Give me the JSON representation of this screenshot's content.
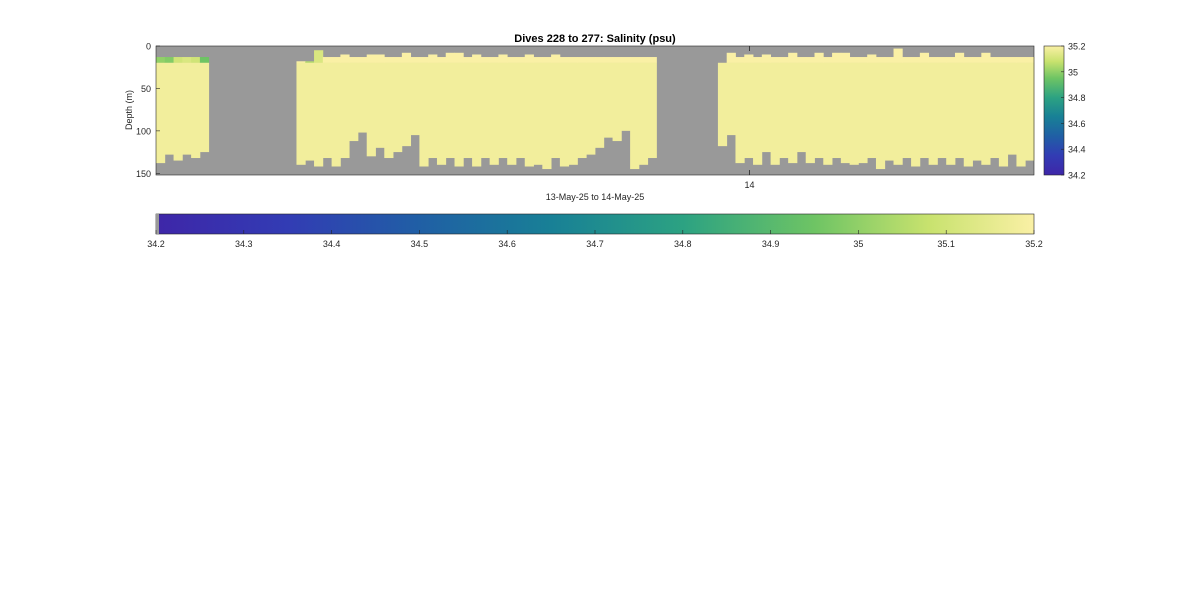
{
  "chart_data": {
    "type": "heatmap",
    "title": "Dives 228 to 277: Salinity (psu)",
    "xlabel": "13-May-25 to 14-May-25",
    "ylabel": "Depth (m)",
    "x_tick_labels": [
      "14"
    ],
    "y_ticks": [
      0,
      50,
      100,
      150
    ],
    "ylim": [
      0,
      152
    ],
    "y_reversed": true,
    "no_data_color": "#999999",
    "colormap": "parula-like (dark blue to yellow)",
    "color_scale": {
      "min": 34.2,
      "max": 35.2,
      "vertical_colorbar_ticks": [
        "34.2",
        "34.4",
        "34.6",
        "34.8",
        "35",
        "35.2"
      ],
      "horizontal_colorbar_ticks": [
        "34.2",
        "34.3",
        "34.4",
        "34.5",
        "34.6",
        "34.7",
        "34.8",
        "34.9",
        "35",
        "35.1",
        "35.2"
      ]
    },
    "profiles": {
      "bin_count": 100,
      "bottom_depth_m": 152,
      "valid_top_depth_m": [
        13,
        13,
        13,
        13,
        13,
        13,
        null,
        null,
        null,
        null,
        null,
        null,
        null,
        null,
        null,
        null,
        18,
        18,
        5,
        13,
        13,
        10,
        13,
        13,
        10,
        10,
        13,
        13,
        8,
        13,
        13,
        10,
        13,
        8,
        8,
        13,
        10,
        13,
        13,
        10,
        13,
        13,
        10,
        13,
        13,
        10,
        13,
        13,
        13,
        13,
        13,
        13,
        13,
        13,
        13,
        13,
        13,
        null,
        null,
        null,
        null,
        null,
        null,
        null,
        20,
        8,
        13,
        10,
        13,
        10,
        13,
        13,
        8,
        13,
        13,
        8,
        13,
        8,
        8,
        13,
        13,
        10,
        13,
        13,
        3,
        13,
        13,
        8,
        13,
        13,
        13,
        8,
        13,
        13,
        8,
        13,
        13,
        13,
        13,
        13
      ],
      "valid_bottom_depth_m": [
        138,
        128,
        135,
        128,
        132,
        125,
        null,
        null,
        null,
        null,
        null,
        null,
        null,
        null,
        null,
        null,
        140,
        135,
        142,
        132,
        142,
        132,
        112,
        102,
        130,
        120,
        132,
        125,
        118,
        105,
        142,
        132,
        140,
        132,
        142,
        132,
        142,
        132,
        140,
        132,
        140,
        132,
        142,
        140,
        145,
        132,
        142,
        140,
        132,
        128,
        120,
        108,
        112,
        100,
        145,
        140,
        132,
        null,
        null,
        null,
        null,
        null,
        null,
        null,
        118,
        105,
        138,
        132,
        140,
        125,
        140,
        132,
        138,
        125,
        138,
        132,
        140,
        132,
        138,
        140,
        138,
        132,
        145,
        135,
        140,
        132,
        142,
        132,
        140,
        132,
        140,
        132,
        142,
        135,
        140,
        132,
        142,
        128,
        142,
        135
      ],
      "near_surface_salinity": [
        35.0,
        34.98,
        35.1,
        35.12,
        35.1,
        34.95,
        null,
        null,
        null,
        null,
        null,
        null,
        null,
        null,
        null,
        null,
        35.2,
        35.05,
        35.12,
        35.2,
        35.2,
        35.2,
        35.2,
        35.2,
        35.2,
        35.2,
        35.2,
        35.2,
        35.2,
        35.2,
        35.2,
        35.2,
        35.2,
        35.2,
        35.2,
        35.2,
        35.2,
        35.2,
        35.2,
        35.2,
        35.2,
        35.2,
        35.2,
        35.2,
        35.2,
        35.2,
        35.2,
        35.2,
        35.2,
        35.2,
        35.2,
        35.2,
        35.2,
        35.2,
        35.2,
        35.2,
        35.2,
        null,
        null,
        null,
        null,
        null,
        null,
        null,
        35.2,
        35.2,
        35.2,
        35.2,
        35.2,
        35.2,
        35.2,
        35.2,
        35.2,
        35.2,
        35.2,
        35.2,
        35.2,
        35.2,
        35.2,
        35.2,
        35.2,
        35.2,
        35.2,
        35.2,
        35.2,
        35.2,
        35.2,
        35.2,
        35.2,
        35.2,
        35.2,
        35.2,
        35.2,
        35.2,
        35.2,
        35.2,
        35.2,
        35.2,
        35.2,
        35.2
      ],
      "near_surface_layer_depth_m": 20,
      "interior_salinity": 35.18
    }
  }
}
